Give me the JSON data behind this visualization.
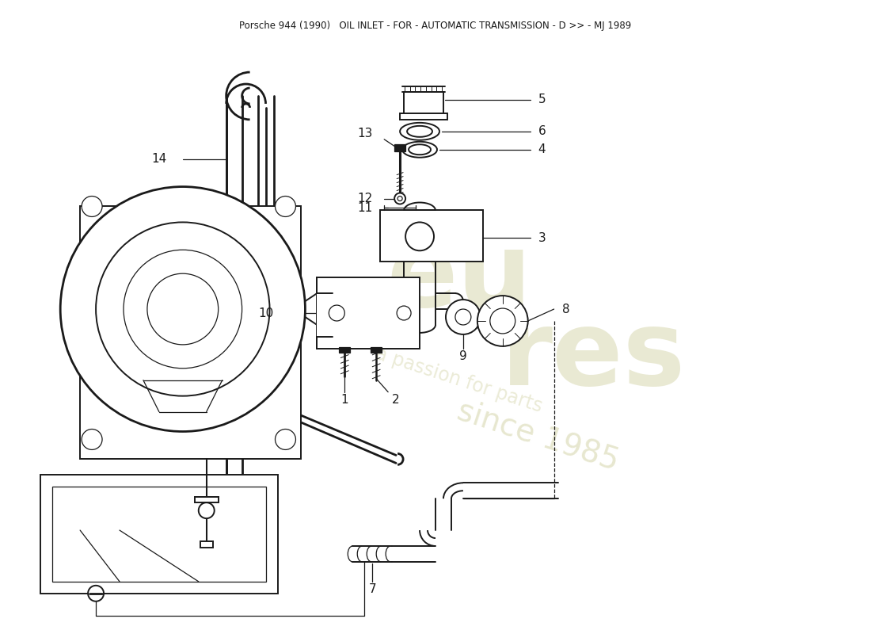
{
  "title": "Porsche 944 (1990)   OIL INLET - FOR - AUTOMATIC TRANSMISSION - D >> - MJ 1989",
  "background_color": "#ffffff",
  "line_color": "#1a1a1a",
  "watermark_text1": "eu",
  "watermark_text2": "res",
  "watermark_text3": "since 1985",
  "watermark_text4": "a passion for parts",
  "figsize": [
    11.0,
    8.0
  ],
  "dpi": 100
}
